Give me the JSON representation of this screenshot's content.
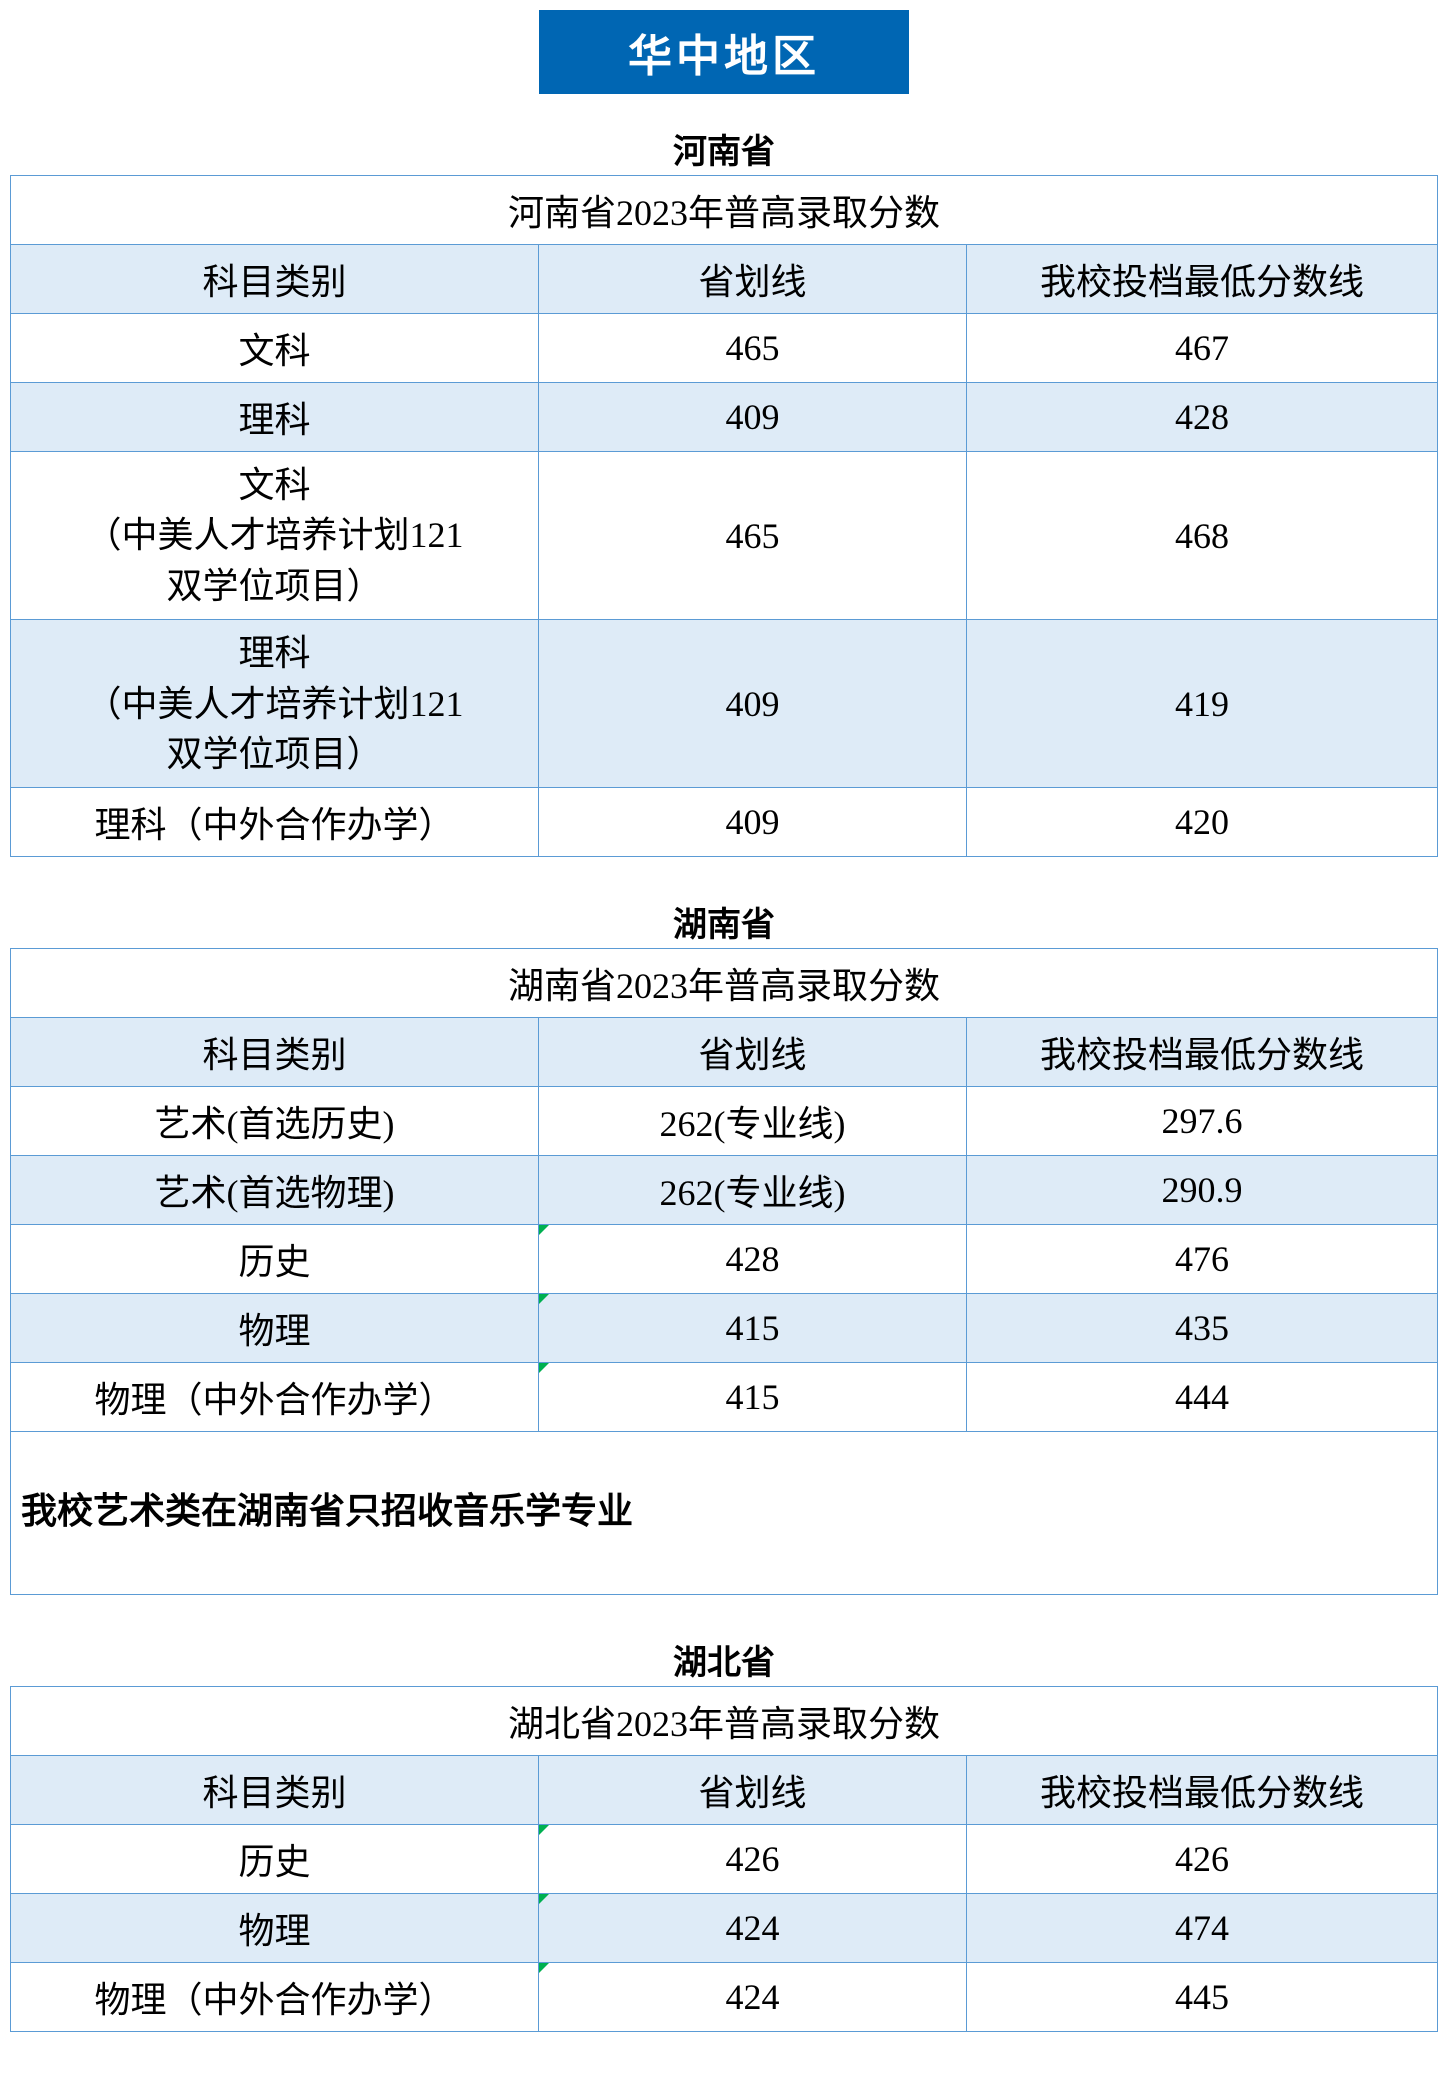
{
  "region_banner": "华中地区",
  "banner_bg_color": "#0066b3",
  "banner_text_color": "#ffffff",
  "header_bg_color": "#deebf7",
  "border_color": "#5b9bd5",
  "corner_marker_color": "#00b050",
  "tables": [
    {
      "province_name": "河南省",
      "title": "河南省2023年普高录取分数",
      "columns": [
        "科目类别",
        "省划线",
        "我校投档最低分数线"
      ],
      "rows": [
        {
          "category": "文科",
          "provincial": "465",
          "school": "467",
          "alt": false,
          "corner": false
        },
        {
          "category": "理科",
          "provincial": "409",
          "school": "428",
          "alt": true,
          "corner": false
        },
        {
          "category": "文科\n（中美人才培养计划121\n双学位项目）",
          "provincial": "465",
          "school": "468",
          "alt": false,
          "corner": false,
          "multiline": true
        },
        {
          "category": "理科\n（中美人才培养计划121\n双学位项目）",
          "provincial": "409",
          "school": "419",
          "alt": true,
          "corner": false,
          "multiline": true
        },
        {
          "category": "理科（中外合作办学）",
          "provincial": "409",
          "school": "420",
          "alt": false,
          "corner": false
        }
      ]
    },
    {
      "province_name": "湖南省",
      "title": "湖南省2023年普高录取分数",
      "columns": [
        "科目类别",
        "省划线",
        "我校投档最低分数线"
      ],
      "rows": [
        {
          "category": "艺术(首选历史)",
          "provincial": "262(专业线)",
          "school": "297.6",
          "alt": false,
          "corner": false
        },
        {
          "category": "艺术(首选物理)",
          "provincial": "262(专业线)",
          "school": "290.9",
          "alt": true,
          "corner": false
        },
        {
          "category": "历史",
          "provincial": "428",
          "school": "476",
          "alt": false,
          "corner": true
        },
        {
          "category": "物理",
          "provincial": "415",
          "school": "435",
          "alt": true,
          "corner": true
        },
        {
          "category": "物理（中外合作办学）",
          "provincial": "415",
          "school": "444",
          "alt": false,
          "corner": true
        }
      ],
      "note": "我校艺术类在湖南省只招收音乐学专业"
    },
    {
      "province_name": "湖北省",
      "title": "湖北省2023年普高录取分数",
      "columns": [
        "科目类别",
        "省划线",
        "我校投档最低分数线"
      ],
      "rows": [
        {
          "category": "历史",
          "provincial": "426",
          "school": "426",
          "alt": false,
          "corner": true
        },
        {
          "category": "物理",
          "provincial": "424",
          "school": "474",
          "alt": true,
          "corner": true
        },
        {
          "category": "物理（中外合作办学）",
          "provincial": "424",
          "school": "445",
          "alt": false,
          "corner": true
        }
      ]
    }
  ]
}
